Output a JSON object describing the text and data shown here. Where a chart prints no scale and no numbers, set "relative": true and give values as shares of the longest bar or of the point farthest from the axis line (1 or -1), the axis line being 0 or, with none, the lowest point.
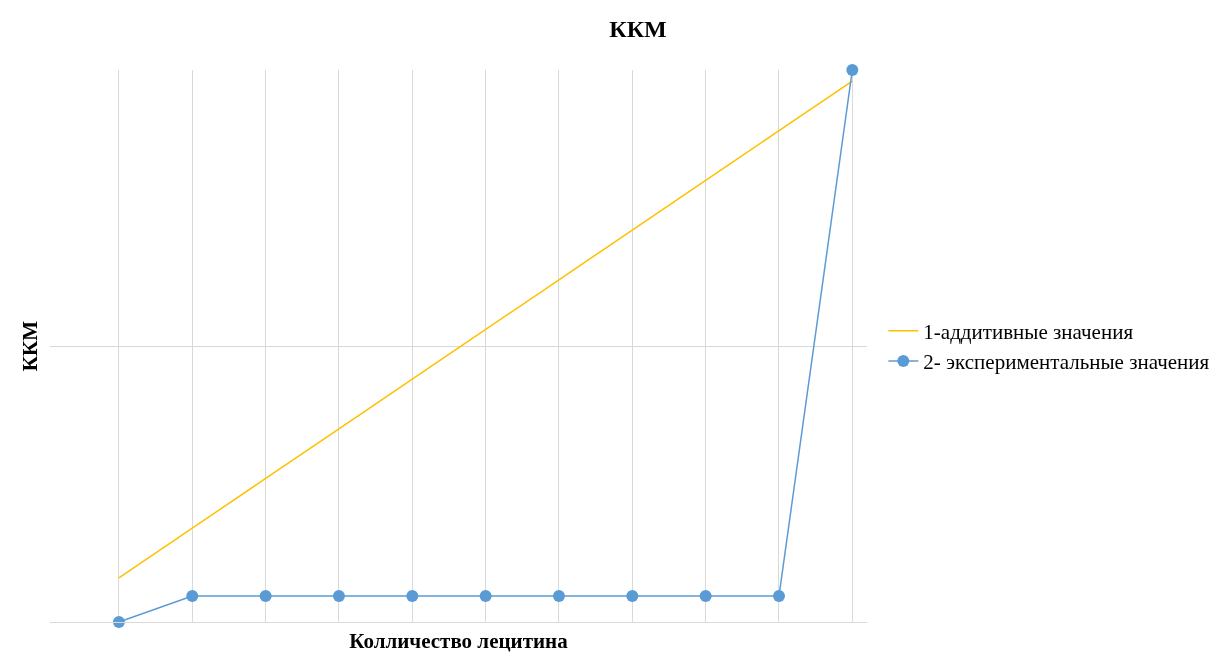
{
  "chart_data": {
    "type": "line",
    "title": "ККМ",
    "xlabel": "Колличество лецитина",
    "ylabel": "ККМ",
    "relative": true,
    "grid": true,
    "legend": "right",
    "categories": [
      null,
      null,
      null,
      null,
      null,
      null,
      null,
      null,
      null,
      null,
      null
    ],
    "series": [
      {
        "name": "1-аддитивные значения",
        "color": "#ffc000",
        "marker": "none",
        "values": [
          0.08,
          0.17,
          0.26,
          0.35,
          0.44,
          0.53,
          0.62,
          0.71,
          0.8,
          0.89,
          0.98
        ]
      },
      {
        "name": "2- экспериментальные значения",
        "color": "#5b9bd5",
        "marker": "circle",
        "values": [
          0,
          0.047,
          0.047,
          0.047,
          0.047,
          0.047,
          0.047,
          0.047,
          0.047,
          0.047,
          1
        ]
      }
    ]
  }
}
